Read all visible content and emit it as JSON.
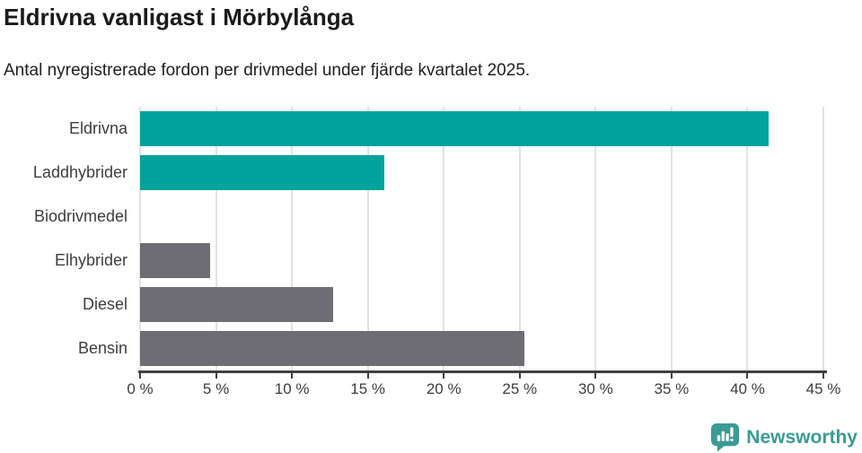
{
  "title": "Eldrivna vanligast i Mörbylånga",
  "subtitle": "Antal nyregistrerade fordon per drivmedel under fjärde kvartalet 2025.",
  "footer": {
    "brand": "Newsworthy"
  },
  "colors": {
    "highlight_teal": "#00a49c",
    "default_gray": "#6d6d73",
    "grid": "#e2e2e2",
    "axis": "#404040",
    "label_text": "#3d3d3d",
    "title_text": "#1a1a1a",
    "logo_teal": "#3a9b95"
  },
  "chart_data": {
    "type": "bar",
    "orientation": "horizontal",
    "title": "Eldrivna vanligast i Mörbylånga",
    "subtitle": "Antal nyregistrerade fordon per drivmedel under fjärde kvartalet 2025.",
    "categories": [
      "Eldrivna",
      "Laddhybrider",
      "Biodrivmedel",
      "Elhybrider",
      "Diesel",
      "Bensin"
    ],
    "values": [
      41.4,
      16.1,
      0,
      4.6,
      12.7,
      25.3
    ],
    "unit": "%",
    "bar_colors": [
      "#00a49c",
      "#00a49c",
      "#6d6d73",
      "#6d6d73",
      "#6d6d73",
      "#6d6d73"
    ],
    "xlabel": "",
    "ylabel": "",
    "xlim": [
      0,
      45
    ],
    "xticks": [
      0,
      5,
      10,
      15,
      20,
      25,
      30,
      35,
      40,
      45
    ],
    "xtick_labels": [
      "0 %",
      "5 %",
      "10 %",
      "15 %",
      "20 %",
      "25 %",
      "30 %",
      "35 %",
      "40 %",
      "45 %"
    ],
    "grid": true,
    "legend": false
  }
}
